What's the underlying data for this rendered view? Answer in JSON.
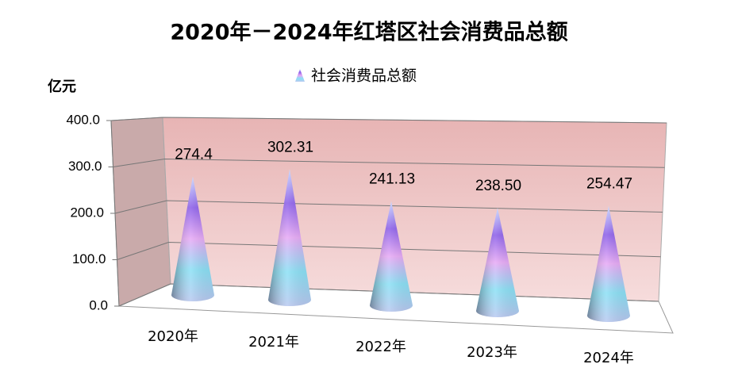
{
  "chart_data": {
    "type": "cone",
    "title": "2020年－2024年红塔区社会消费品总额",
    "y_axis_label": "亿元",
    "categories": [
      "2020年",
      "2021年",
      "2022年",
      "2023年",
      "2024年"
    ],
    "series": [
      {
        "name": "社会消费品总额",
        "color": "#a070f0",
        "values": [
          274.4,
          302.31,
          241.13,
          238.5,
          254.47
        ],
        "value_labels": [
          "274.4",
          "302.31",
          "241.13",
          "238.50",
          "254.47"
        ]
      }
    ],
    "ylim": [
      0,
      400
    ],
    "yticks": [
      {
        "value": 0,
        "label": "0.0"
      },
      {
        "value": 100,
        "label": "100.0"
      },
      {
        "value": 200,
        "label": "200.0"
      },
      {
        "value": 300,
        "label": "300.0"
      },
      {
        "value": 400,
        "label": "400.0"
      }
    ],
    "grid": true,
    "legend": "top"
  }
}
